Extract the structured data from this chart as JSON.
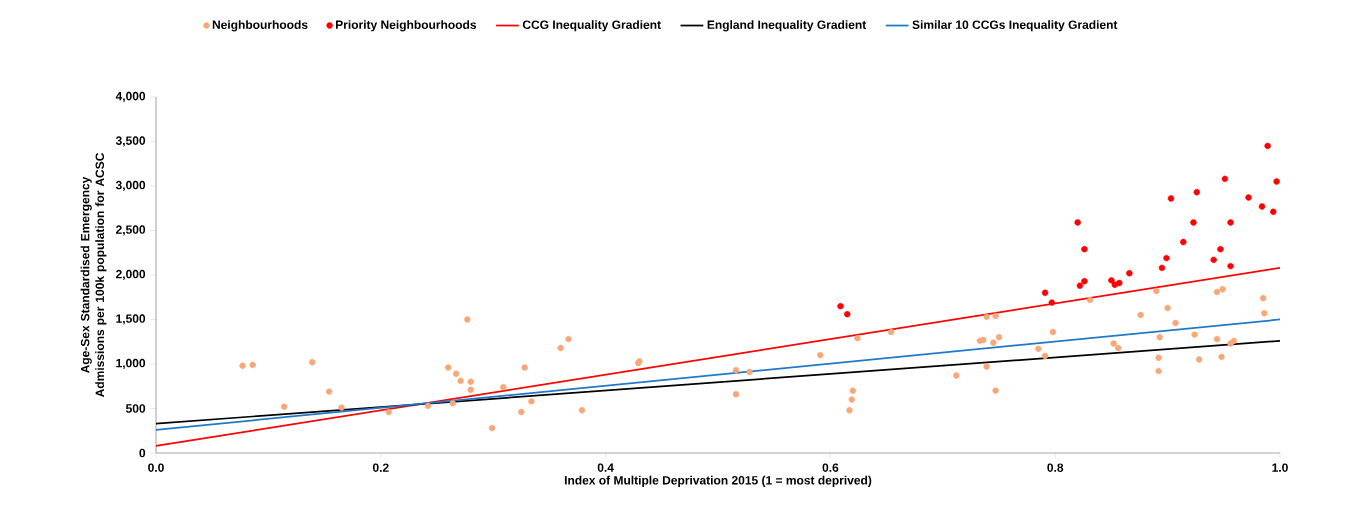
{
  "chart_data": {
    "type": "scatter",
    "xlabel": "Index of Multiple Deprivation 2015 (1 = most deprived)",
    "ylabel": "Age-Sex  Standardised Emergency Admissions per 100k population for ACSC",
    "xlim": [
      0,
      1
    ],
    "ylim": [
      0,
      4000
    ],
    "xticks": [
      {
        "value": 0,
        "label": "0.0"
      },
      {
        "value": 0.2,
        "label": "0.2"
      },
      {
        "value": 0.4,
        "label": "0.4"
      },
      {
        "value": 0.6,
        "label": "0.6"
      },
      {
        "value": 0.8,
        "label": "0.8"
      },
      {
        "value": 1,
        "label": "1.0"
      }
    ],
    "yticks": [
      0,
      500,
      {
        "value": 1000,
        "label": "1,000"
      },
      {
        "value": 1500,
        "label": "1,500"
      },
      {
        "value": 2000,
        "label": "2,000"
      },
      {
        "value": 2500,
        "label": "2,500"
      },
      {
        "value": 3000,
        "label": "3,000"
      },
      {
        "value": 3500,
        "label": "3,500"
      },
      {
        "value": 4000,
        "label": "4,000"
      }
    ],
    "legend": "top",
    "series": [
      {
        "name": "Neighbourhoods",
        "marker": "circle",
        "color": "#f7a878",
        "x": [
          0.077,
          0.086,
          0.114,
          0.139,
          0.154,
          0.165,
          0.207,
          0.242,
          0.26,
          0.267,
          0.271,
          0.28,
          0.28,
          0.264,
          0.277,
          0.299,
          0.309,
          0.325,
          0.328,
          0.334,
          0.379,
          0.36,
          0.367,
          0.429,
          0.43,
          0.516,
          0.516,
          0.528,
          0.591,
          0.624,
          0.654,
          0.62,
          0.619,
          0.617,
          0.712,
          0.733,
          0.739,
          0.747,
          0.736,
          0.745,
          0.75,
          0.739,
          0.747,
          0.785,
          0.791,
          0.798,
          0.831,
          0.852,
          0.856,
          0.876,
          0.89,
          0.893,
          0.892,
          0.892,
          0.9,
          0.907,
          0.924,
          0.928,
          0.944,
          0.949,
          0.944,
          0.948,
          0.956,
          0.959,
          0.985,
          0.986
        ],
        "values": [
          980,
          990,
          520,
          1020,
          690,
          510,
          460,
          530,
          960,
          890,
          810,
          800,
          710,
          560,
          1500,
          280,
          740,
          460,
          960,
          580,
          480,
          1180,
          1280,
          1010,
          1030,
          660,
          930,
          910,
          1100,
          1290,
          1360,
          700,
          600,
          480,
          870,
          1260,
          1530,
          1540,
          1270,
          1240,
          1300,
          970,
          700,
          1170,
          1090,
          1360,
          1720,
          1230,
          1180,
          1550,
          1820,
          1300,
          1070,
          920,
          1630,
          1460,
          1330,
          1050,
          1810,
          1840,
          1280,
          1080,
          1230,
          1260,
          1740,
          1570
        ]
      },
      {
        "name": "Priority Neighbourhoods",
        "marker": "circle",
        "color": "#ff0000",
        "x": [
          0.609,
          0.615,
          0.791,
          0.797,
          0.82,
          0.826,
          0.822,
          0.826,
          0.85,
          0.853,
          0.857,
          0.866,
          0.895,
          0.899,
          0.903,
          0.914,
          0.923,
          0.926,
          0.941,
          0.947,
          0.951,
          0.956,
          0.956,
          0.972,
          0.984,
          0.989,
          0.994,
          0.997
        ],
        "values": [
          1650,
          1560,
          1800,
          1690,
          2590,
          2290,
          1880,
          1930,
          1940,
          1890,
          1910,
          2020,
          2080,
          2190,
          2860,
          2370,
          2590,
          2930,
          2170,
          2290,
          3080,
          2590,
          2100,
          2870,
          2770,
          3450,
          2710,
          3050
        ]
      },
      {
        "name": "CCG Inequality Gradient",
        "type": "line",
        "marker": "none",
        "color": "#ff0000",
        "line_style": "solid",
        "x": [
          0,
          1
        ],
        "values": [
          80,
          2080
        ]
      },
      {
        "name": "England Inequality Gradient",
        "type": "line",
        "marker": "none",
        "color": "#000000",
        "line_style": "solid",
        "x": [
          0,
          1
        ],
        "values": [
          330,
          1260
        ]
      },
      {
        "name": "Similar 10 CCGs Inequality Gradient",
        "type": "line",
        "marker": "none",
        "color": "#1f78c8",
        "line_style": "solid",
        "x": [
          0,
          1
        ],
        "values": [
          260,
          1500
        ]
      }
    ]
  }
}
